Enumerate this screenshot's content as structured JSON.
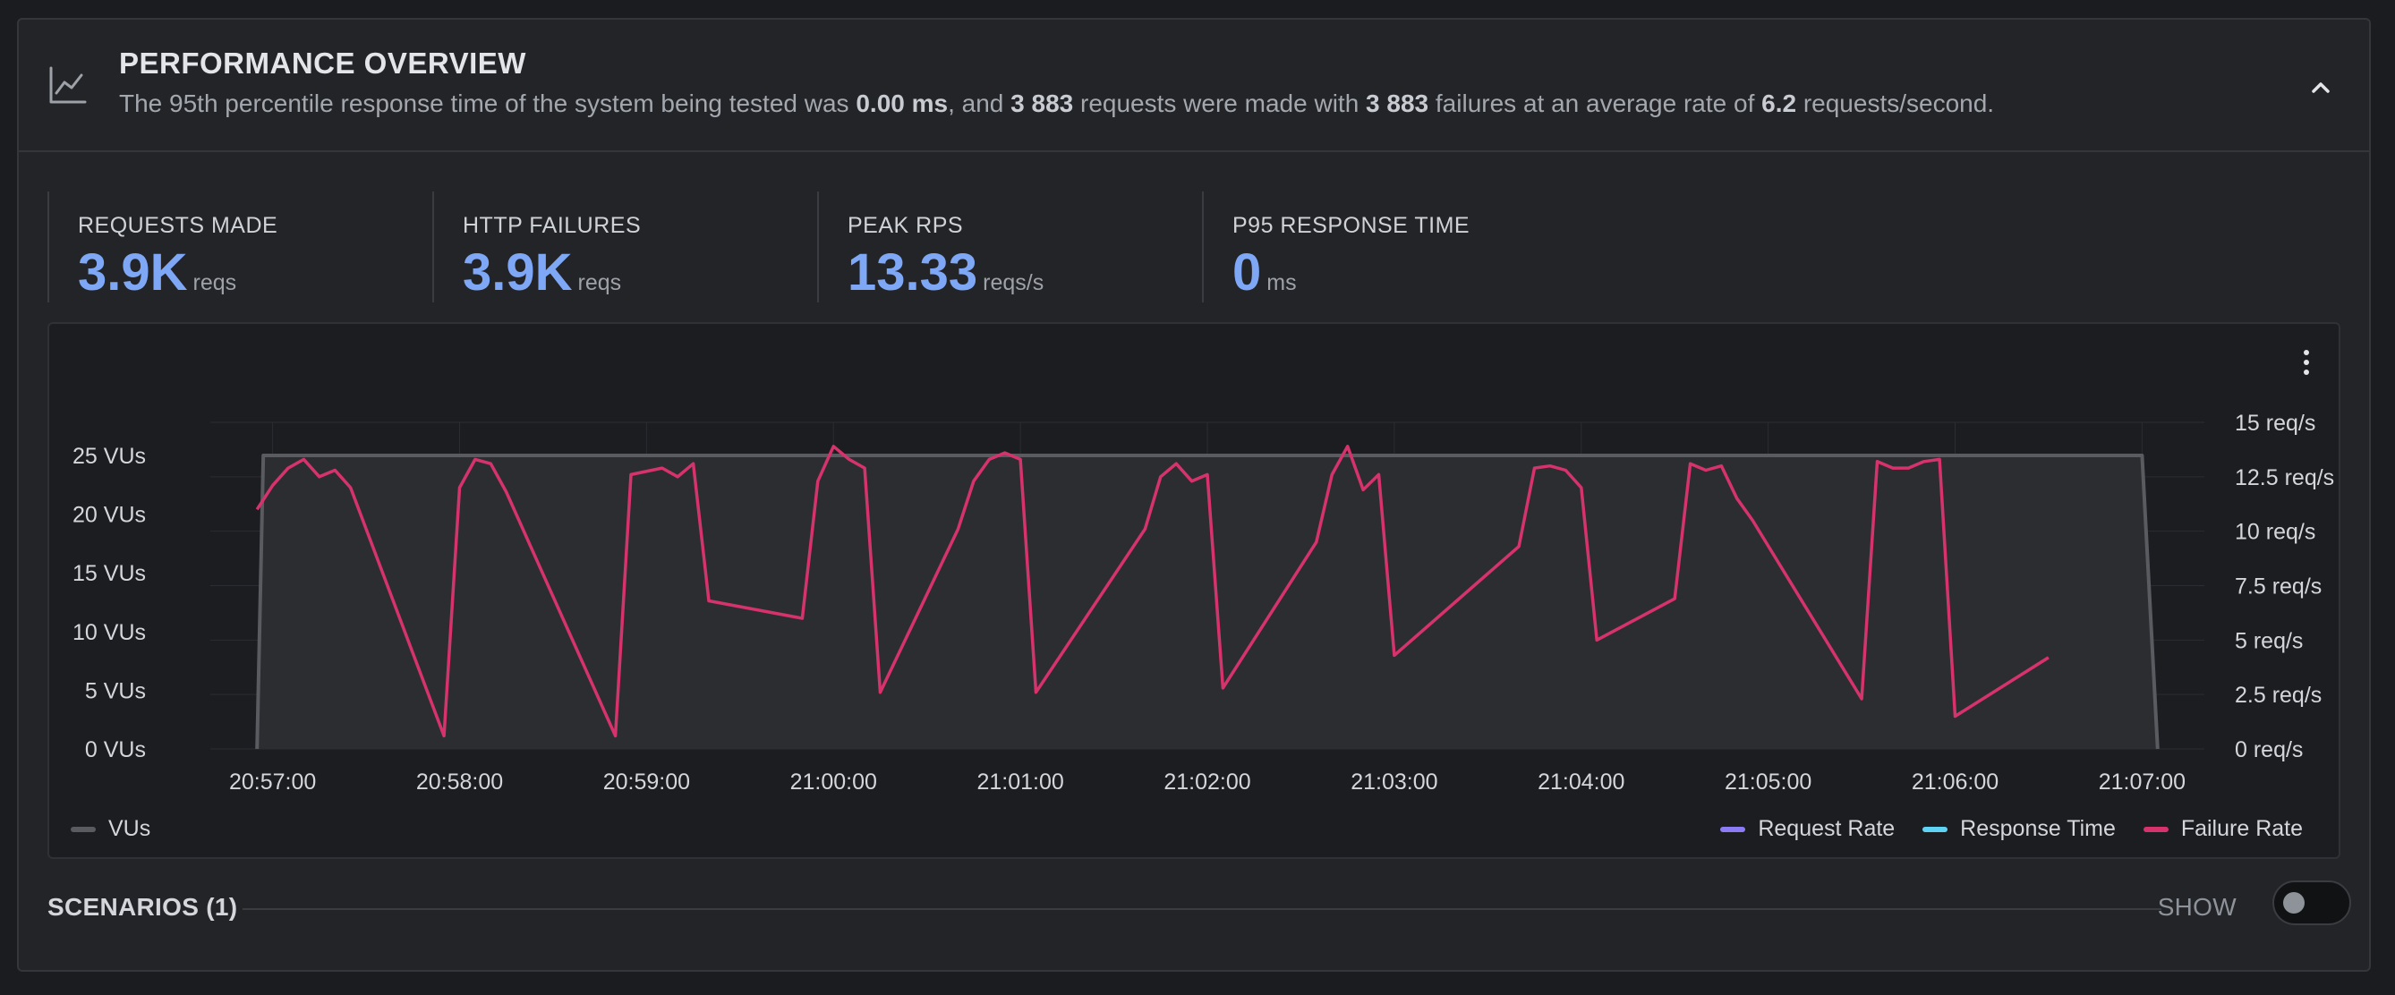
{
  "header": {
    "title": "PERFORMANCE OVERVIEW",
    "summary": {
      "prefix": "The 95th percentile response time of the system being tested was ",
      "p95": "0.00 ms",
      "mid1": ", and ",
      "requests": "3 883",
      "mid2": " requests were made with ",
      "failures": "3 883",
      "mid3": " failures at an average rate of ",
      "rate": "6.2",
      "suffix": " requests/second."
    },
    "icon": "line-chart-icon",
    "collapse_icon": "chevron-up-icon"
  },
  "stats": [
    {
      "label": "REQUESTS MADE",
      "value": "3.9K",
      "unit": "reqs"
    },
    {
      "label": "HTTP FAILURES",
      "value": "3.9K",
      "unit": "reqs"
    },
    {
      "label": "PEAK RPS",
      "value": "13.33",
      "unit": "reqs/s"
    },
    {
      "label": "P95 RESPONSE TIME",
      "value": "0",
      "unit": "ms"
    }
  ],
  "colors": {
    "accent_value": "#7ea7f5",
    "vus": "#5a5b60",
    "request_rate": "#8b7cf6",
    "response_time": "#5fd3f3",
    "failure_rate": "#d6336c"
  },
  "chart_data": {
    "type": "line",
    "x": [
      "20:56:55",
      "20:56:57",
      "20:57:00",
      "20:57:05",
      "20:57:10",
      "20:57:15",
      "20:57:20",
      "20:57:25",
      "20:57:30",
      "20:57:35",
      "20:57:40",
      "20:57:45",
      "20:57:50",
      "20:57:55",
      "20:58:00",
      "20:58:05",
      "20:58:10",
      "20:58:15",
      "20:58:20",
      "20:58:25",
      "20:58:30",
      "20:58:35",
      "20:58:40",
      "20:58:45",
      "20:58:50",
      "20:58:55",
      "20:59:00",
      "20:59:05",
      "20:59:10",
      "20:59:15",
      "20:59:20",
      "20:59:25",
      "20:59:30",
      "20:59:35",
      "20:59:40",
      "20:59:45",
      "20:59:50",
      "20:59:55",
      "21:00:00",
      "21:00:05",
      "21:00:10",
      "21:00:15",
      "21:00:20",
      "21:00:25",
      "21:00:30",
      "21:00:35",
      "21:00:40",
      "21:00:45",
      "21:00:50",
      "21:00:55",
      "21:01:00",
      "21:01:05",
      "21:01:10",
      "21:01:15",
      "21:01:20",
      "21:01:25",
      "21:01:30",
      "21:01:35",
      "21:01:40",
      "21:01:45",
      "21:01:50",
      "21:01:55",
      "21:02:00",
      "21:02:05",
      "21:02:10",
      "21:02:15",
      "21:02:20",
      "21:02:25",
      "21:02:30",
      "21:02:35",
      "21:02:40",
      "21:02:45",
      "21:02:50",
      "21:02:55",
      "21:03:00",
      "21:03:05",
      "21:03:10",
      "21:03:15",
      "21:03:20",
      "21:03:25",
      "21:03:30",
      "21:03:35",
      "21:03:40",
      "21:03:45",
      "21:03:50",
      "21:03:55",
      "21:04:00",
      "21:04:05",
      "21:04:10",
      "21:04:15",
      "21:04:20",
      "21:04:25",
      "21:04:30",
      "21:04:35",
      "21:04:40",
      "21:04:45",
      "21:04:50",
      "21:04:55",
      "21:05:00",
      "21:05:05",
      "21:05:10",
      "21:05:15",
      "21:05:20",
      "21:05:25",
      "21:05:30",
      "21:05:35",
      "21:05:40",
      "21:05:45",
      "21:05:50",
      "21:05:55",
      "21:06:00",
      "21:06:05",
      "21:06:10",
      "21:06:15",
      "21:06:20",
      "21:06:25",
      "21:06:30",
      "21:06:35",
      "21:06:40",
      "21:06:45",
      "21:06:50",
      "21:06:55",
      "21:07:00",
      "21:07:05"
    ],
    "series": [
      {
        "name": "VUs",
        "axis": "left",
        "values": [
          0,
          25,
          25,
          25,
          25,
          25,
          25,
          25,
          25,
          25,
          25,
          25,
          25,
          25,
          25,
          25,
          25,
          25,
          25,
          25,
          25,
          25,
          25,
          25,
          25,
          25,
          25,
          25,
          25,
          25,
          25,
          25,
          25,
          25,
          25,
          25,
          25,
          25,
          25,
          25,
          25,
          25,
          25,
          25,
          25,
          25,
          25,
          25,
          25,
          25,
          25,
          25,
          25,
          25,
          25,
          25,
          25,
          25,
          25,
          25,
          25,
          25,
          25,
          25,
          25,
          25,
          25,
          25,
          25,
          25,
          25,
          25,
          25,
          25,
          25,
          25,
          25,
          25,
          25,
          25,
          25,
          25,
          25,
          25,
          25,
          25,
          25,
          25,
          25,
          25,
          25,
          25,
          25,
          25,
          25,
          25,
          25,
          25,
          25,
          25,
          25,
          25,
          25,
          25,
          25,
          25,
          25,
          25,
          25,
          25,
          25,
          25,
          25,
          25,
          25,
          25,
          25,
          25,
          25,
          25,
          25,
          25,
          25,
          0
        ]
      },
      {
        "name": "Failure Rate",
        "axis": "right",
        "points": [
          [
            "20:56:55",
            11.0
          ],
          [
            "20:57:00",
            12.1
          ],
          [
            "20:57:05",
            12.9
          ],
          [
            "20:57:10",
            13.3
          ],
          [
            "20:57:15",
            12.5
          ],
          [
            "20:57:20",
            12.8
          ],
          [
            "20:57:25",
            12.0
          ],
          [
            "20:57:55",
            0.6
          ],
          [
            "20:58:00",
            12.0
          ],
          [
            "20:58:05",
            13.3
          ],
          [
            "20:58:10",
            13.1
          ],
          [
            "20:58:15",
            11.8
          ],
          [
            "20:58:50",
            0.6
          ],
          [
            "20:58:55",
            12.6
          ],
          [
            "20:59:05",
            12.9
          ],
          [
            "20:59:10",
            12.5
          ],
          [
            "20:59:15",
            13.1
          ],
          [
            "20:59:20",
            6.8
          ],
          [
            "20:59:50",
            6.0
          ],
          [
            "20:59:55",
            12.3
          ],
          [
            "21:00:00",
            13.9
          ],
          [
            "21:00:05",
            13.3
          ],
          [
            "21:00:10",
            12.9
          ],
          [
            "21:00:15",
            2.6
          ],
          [
            "21:00:40",
            10.1
          ],
          [
            "21:00:45",
            12.3
          ],
          [
            "21:00:50",
            13.3
          ],
          [
            "21:00:55",
            13.6
          ],
          [
            "21:01:00",
            13.3
          ],
          [
            "21:01:05",
            2.6
          ],
          [
            "21:01:40",
            10.1
          ],
          [
            "21:01:45",
            12.5
          ],
          [
            "21:01:50",
            13.1
          ],
          [
            "21:01:55",
            12.3
          ],
          [
            "21:02:00",
            12.6
          ],
          [
            "21:02:05",
            2.8
          ],
          [
            "21:02:35",
            9.5
          ],
          [
            "21:02:40",
            12.6
          ],
          [
            "21:02:45",
            13.9
          ],
          [
            "21:02:50",
            11.9
          ],
          [
            "21:02:55",
            12.6
          ],
          [
            "21:03:00",
            4.3
          ],
          [
            "21:03:40",
            9.3
          ],
          [
            "21:03:45",
            12.9
          ],
          [
            "21:03:50",
            13.0
          ],
          [
            "21:03:55",
            12.8
          ],
          [
            "21:04:00",
            12.0
          ],
          [
            "21:04:05",
            5.0
          ],
          [
            "21:04:30",
            6.9
          ],
          [
            "21:04:35",
            13.1
          ],
          [
            "21:04:40",
            12.8
          ],
          [
            "21:04:45",
            13.0
          ],
          [
            "21:04:50",
            11.5
          ],
          [
            "21:04:55",
            10.5
          ],
          [
            "21:05:30",
            2.3
          ],
          [
            "21:05:35",
            13.2
          ],
          [
            "21:05:40",
            12.9
          ],
          [
            "21:05:45",
            12.9
          ],
          [
            "21:05:50",
            13.2
          ],
          [
            "21:05:55",
            13.3
          ],
          [
            "21:06:00",
            1.5
          ],
          [
            "21:06:30",
            4.2
          ]
        ]
      },
      {
        "name": "Request Rate",
        "axis": "right",
        "points": []
      },
      {
        "name": "Response Time",
        "axis": "right",
        "points": []
      }
    ],
    "left_axis": {
      "ticks": [
        "0 VUs",
        "5 VUs",
        "10 VUs",
        "15 VUs",
        "20 VUs",
        "25 VUs"
      ],
      "range": [
        0,
        25
      ]
    },
    "right_axis": {
      "ticks": [
        "0 req/s",
        "2.5 req/s",
        "5 req/s",
        "7.5 req/s",
        "10 req/s",
        "12.5 req/s",
        "15 req/s"
      ],
      "range": [
        0,
        15
      ]
    },
    "x_ticks": [
      "20:57:00",
      "20:58:00",
      "20:59:00",
      "21:00:00",
      "21:01:00",
      "21:02:00",
      "21:03:00",
      "21:04:00",
      "21:05:00",
      "21:06:00",
      "21:07:00"
    ],
    "grid": true,
    "legend_left": [
      {
        "label": "VUs"
      }
    ],
    "legend_right": [
      {
        "label": "Request Rate"
      },
      {
        "label": "Response Time"
      },
      {
        "label": "Failure Rate"
      }
    ]
  },
  "scenarios": {
    "title": "SCENARIOS (1)",
    "toggle_label": "SHOW",
    "toggle_on": false
  }
}
